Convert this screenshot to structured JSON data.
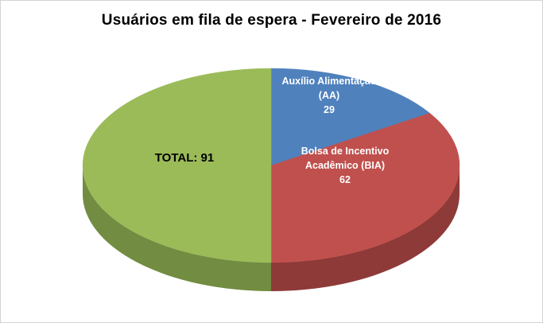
{
  "title": "Usuários em fila de espera - Fevereiro de 2016",
  "chart_data": {
    "type": "pie",
    "title": "Usuários em fila de espera - Fevereiro de 2016",
    "effect": "3d",
    "legend": "none",
    "background": "#ffffff",
    "start_angle_deg": -90,
    "direction": "clockwise",
    "slices": [
      {
        "label": "Auxílio Alimentação (AA)",
        "value": 29,
        "color": "#4f81bd",
        "side_color": "#3b6191",
        "text_color": "#ffffff",
        "label_lines": [
          "Auxílio Alimentação",
          "(AA)",
          "29"
        ]
      },
      {
        "label": "Bolsa de Incentivo Acadêmico (BIA)",
        "value": 62,
        "color": "#c0504d",
        "side_color": "#8e3a38",
        "text_color": "#ffffff",
        "label_lines": [
          "Bolsa de Incentivo",
          "Acadêmico (BIA)",
          "62"
        ]
      },
      {
        "label": "TOTAL: 91",
        "value": 91,
        "color": "#9bbb59",
        "side_color": "#728c42",
        "text_color": "#000000",
        "label_lines": [
          "TOTAL: 91"
        ]
      }
    ]
  }
}
